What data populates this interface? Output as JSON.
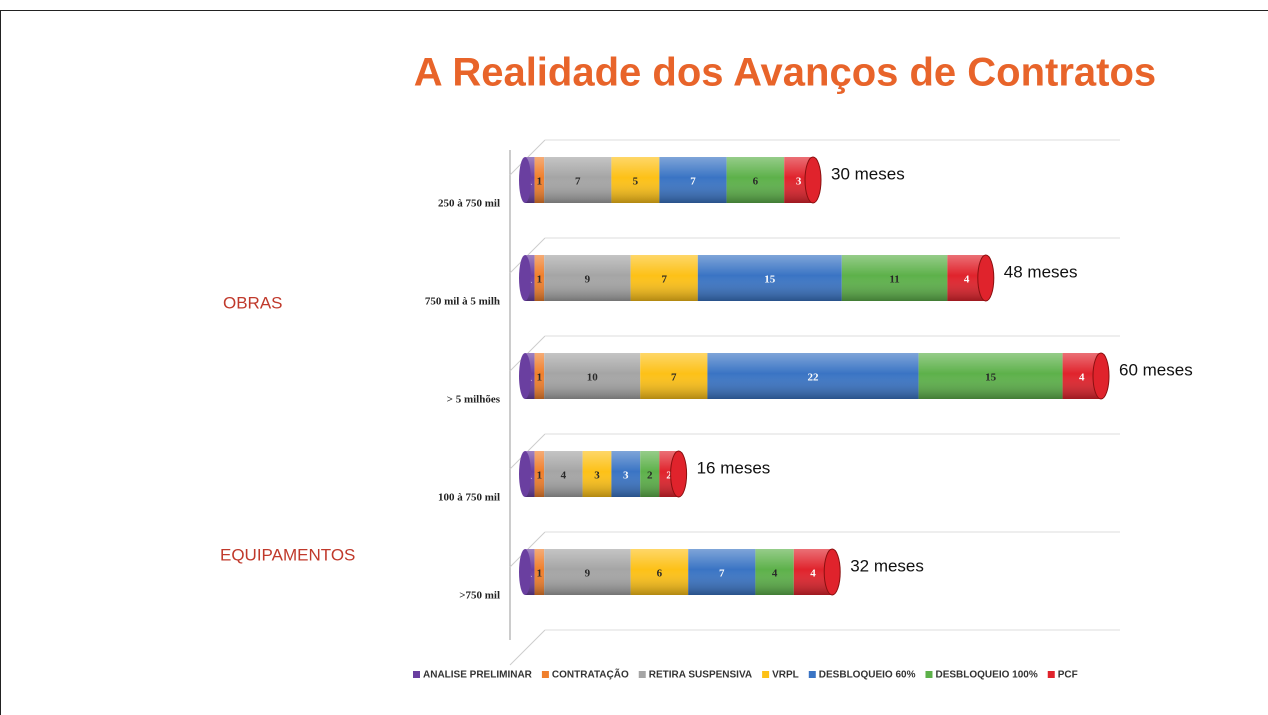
{
  "chart_data": {
    "type": "bar",
    "orientation": "horizontal",
    "stacked": true,
    "title": "A Realidade dos Avanços de Contratos",
    "categories": [
      "250 à 750 mil",
      "750 mil à 5 milh",
      "> 5 milhões",
      "100 à 750 mil",
      ">750 mil"
    ],
    "groups": [
      {
        "label": "OBRAS",
        "categories": [
          0,
          1,
          2
        ]
      },
      {
        "label": "EQUIPAMENTOS",
        "categories": [
          3,
          4
        ]
      }
    ],
    "annotations": [
      "30 meses",
      "48 meses",
      "60 meses",
      "16 meses",
      "32 meses"
    ],
    "series": [
      {
        "name": "ANALISE PRELIMINAR",
        "color": "#6a3fa0",
        "values": [
          1,
          1,
          1,
          1,
          1
        ]
      },
      {
        "name": "CONTRATAÇÃO",
        "color": "#f07f2c",
        "values": [
          1,
          1,
          1,
          1,
          1
        ]
      },
      {
        "name": "RETIRA SUSPENSIVA",
        "color": "#a5a5a5",
        "values": [
          7,
          9,
          10,
          4,
          9
        ]
      },
      {
        "name": "VRPL",
        "color": "#fdc117",
        "values": [
          5,
          7,
          7,
          3,
          6
        ]
      },
      {
        "name": "DESBLOQUEIO 60%",
        "color": "#3a74c4",
        "values": [
          7,
          15,
          22,
          3,
          7
        ]
      },
      {
        "name": "DESBLOQUEIO 100%",
        "color": "#5db14a",
        "values": [
          6,
          11,
          15,
          2,
          4
        ]
      },
      {
        "name": "PCF",
        "color": "#e0232c",
        "values": [
          3,
          4,
          4,
          2,
          4
        ]
      }
    ],
    "legend": "bottom"
  }
}
